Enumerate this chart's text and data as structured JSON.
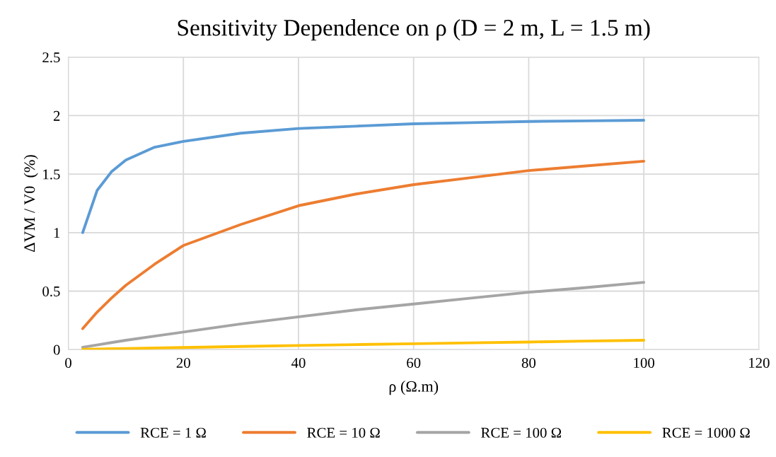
{
  "chart_data": {
    "type": "line",
    "title": "Sensitivity Dependence on ρ (D = 2 m, L = 1.5 m)",
    "xlabel": "ρ (Ω.m)",
    "ylabel": "ΔVM / V0  (%)",
    "x": [
      2.5,
      5,
      7.5,
      10,
      15,
      20,
      30,
      40,
      50,
      60,
      70,
      80,
      90,
      100
    ],
    "series": [
      {
        "name": "RCE = 1 Ω",
        "color": "#5b9bd5",
        "values": [
          1.0,
          1.36,
          1.52,
          1.62,
          1.73,
          1.78,
          1.85,
          1.89,
          1.91,
          1.93,
          1.94,
          1.95,
          1.955,
          1.96
        ]
      },
      {
        "name": "RCE = 10 Ω",
        "color": "#ed7d31",
        "values": [
          0.18,
          0.32,
          0.44,
          0.55,
          0.73,
          0.89,
          1.07,
          1.23,
          1.33,
          1.41,
          1.47,
          1.53,
          1.57,
          1.61
        ]
      },
      {
        "name": "RCE = 100 Ω",
        "color": "#a5a5a5",
        "values": [
          0.02,
          0.04,
          0.06,
          0.08,
          0.115,
          0.15,
          0.22,
          0.28,
          0.34,
          0.39,
          0.44,
          0.49,
          0.53,
          0.575
        ]
      },
      {
        "name": "RCE = 1000 Ω",
        "color": "#ffc000",
        "values": [
          0.003,
          0.005,
          0.007,
          0.009,
          0.014,
          0.018,
          0.027,
          0.035,
          0.043,
          0.05,
          0.058,
          0.065,
          0.073,
          0.08
        ]
      }
    ],
    "xlim": [
      0,
      120
    ],
    "xticks": [
      0,
      20,
      40,
      60,
      80,
      100,
      120
    ],
    "ylim": [
      0,
      2.5
    ],
    "yticks": [
      0,
      0.5,
      1,
      1.5,
      2,
      2.5
    ],
    "grid": true,
    "legend": "bottom",
    "marker": "none",
    "line_style": "solid"
  }
}
